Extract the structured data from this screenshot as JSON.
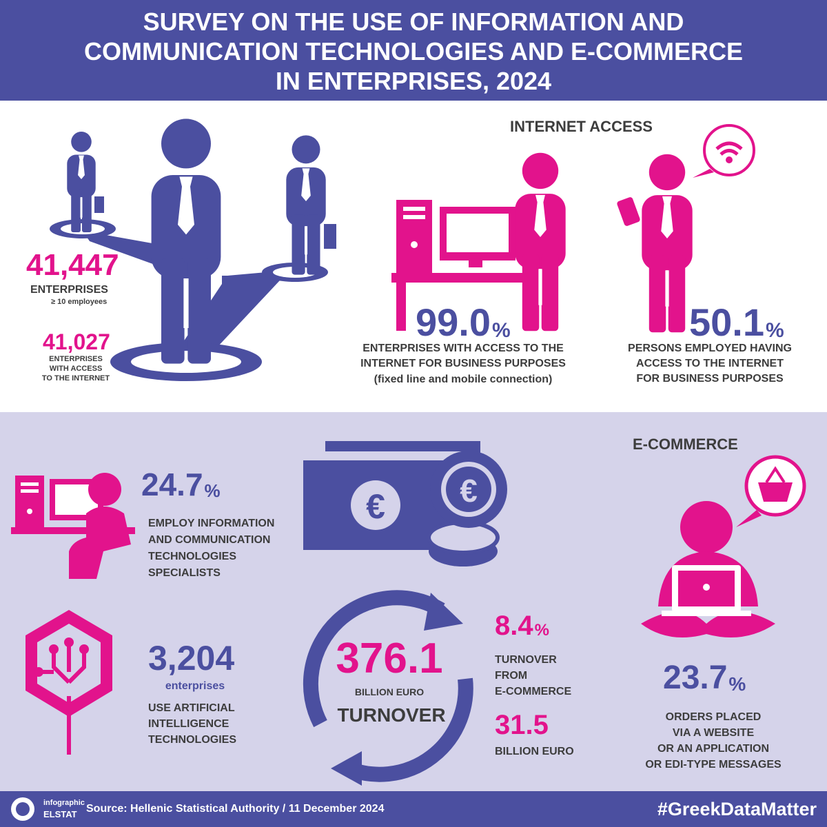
{
  "header": {
    "title_lines": [
      "SURVEY ON THE USE OF INFORMATION AND",
      "COMMUNICATION TECHNOLOGIES AND E-COMMERCE",
      "IN ENTERPRISES, 2024"
    ]
  },
  "overview": {
    "enterprises": {
      "value": "41,447",
      "label": "ENTERPRISES",
      "note": "≥ 10 employees"
    },
    "with_access": {
      "value": "41,027",
      "label_lines": [
        "ENTERPRISES",
        "WITH ACCESS",
        "TO THE INTERNET"
      ]
    }
  },
  "internet_access": {
    "title": "INTERNET ACCESS",
    "enterprises": {
      "value": "99.0",
      "unit": "%",
      "label_lines": [
        "ENTERPRISES WITH ACCESS TO THE",
        "INTERNET FOR BUSINESS PURPOSES"
      ],
      "note": "(fixed line and mobile connection)"
    },
    "persons": {
      "value": "50.1",
      "unit": "%",
      "label_lines": [
        "PERSONS EMPLOYED HAVING",
        "ACCESS TO THE INTERNET",
        "FOR BUSINESS PURPOSES"
      ]
    }
  },
  "ict_specialists": {
    "value": "24.7",
    "unit": "%",
    "label_lines": [
      "EMPLOY INFORMATION",
      "AND COMMUNICATION",
      "TECHNOLOGIES",
      "SPECIALISTS"
    ]
  },
  "ai": {
    "value": "3,204",
    "unit": "enterprises",
    "label_lines": [
      "USE ARTIFICIAL",
      "INTELLIGENCE",
      "TECHNOLOGIES"
    ]
  },
  "ecommerce": {
    "title": "E-COMMERCE",
    "turnover": {
      "value": "376.1",
      "unit": "BILLION EURO",
      "label": "TURNOVER"
    },
    "share": {
      "value": "8.4",
      "unit": "%",
      "label_lines": [
        "TURNOVER",
        "FROM",
        "E-COMMERCE"
      ]
    },
    "ecommerce_turnover": {
      "value": "31.5",
      "unit": "BILLION EURO"
    },
    "orders": {
      "value": "23.7",
      "unit": "%",
      "label_lines": [
        "ORDERS PLACED",
        "VIA A WEBSITE",
        "OR AN APPLICATION",
        "OR EDI-TYPE MESSAGES"
      ]
    }
  },
  "footer": {
    "logo_top": "infographic",
    "logo_bottom": "ELSTAT",
    "source": "Source: Hellenic Statistical Authority / 11 December 2024",
    "hashtag": "#GreekDataMatter"
  }
}
